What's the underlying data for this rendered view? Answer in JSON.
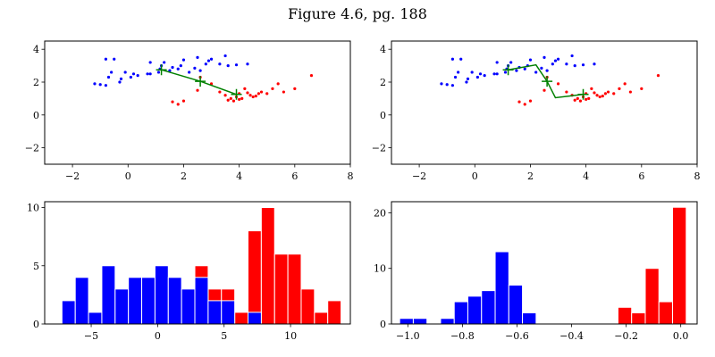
{
  "figure": {
    "title": "Figure 4.6, pg. 188"
  },
  "colors": {
    "class_a": "#0000ff",
    "class_b": "#ff0000",
    "path": "#008000"
  },
  "chart_data": [
    {
      "type": "scatter",
      "xlim": [
        -3,
        8
      ],
      "ylim": [
        -3,
        4.5
      ],
      "xticks": [
        "−2",
        "0",
        "2",
        "4",
        "6",
        "8"
      ],
      "xtick_values": [
        -2,
        0,
        2,
        4,
        6,
        8
      ],
      "yticks": [
        "−2",
        "0",
        "2",
        "4"
      ],
      "ytick_values": [
        -2,
        0,
        2,
        4
      ],
      "series": [
        {
          "color": "#0000ff",
          "points": [
            [
              -1.2,
              1.9
            ],
            [
              -1.0,
              1.85
            ],
            [
              -0.8,
              1.8
            ],
            [
              -0.8,
              3.4
            ],
            [
              -0.7,
              2.3
            ],
            [
              -0.6,
              2.6
            ],
            [
              -0.5,
              3.4
            ],
            [
              -0.3,
              2.0
            ],
            [
              -0.25,
              2.2
            ],
            [
              -0.1,
              2.6
            ],
            [
              0.1,
              2.3
            ],
            [
              0.2,
              2.5
            ],
            [
              0.35,
              2.4
            ],
            [
              0.7,
              2.5
            ],
            [
              0.8,
              2.5
            ],
            [
              0.8,
              3.2
            ],
            [
              1.1,
              2.6
            ],
            [
              1.15,
              2.8
            ],
            [
              1.2,
              3.0
            ],
            [
              1.3,
              3.2
            ],
            [
              1.5,
              2.7
            ],
            [
              1.6,
              2.9
            ],
            [
              1.8,
              2.8
            ],
            [
              1.9,
              3.0
            ],
            [
              2.0,
              3.35
            ],
            [
              2.2,
              2.6
            ],
            [
              2.4,
              2.85
            ],
            [
              2.5,
              3.5
            ],
            [
              2.6,
              2.7
            ],
            [
              2.8,
              3.1
            ],
            [
              2.9,
              3.3
            ],
            [
              3.0,
              3.4
            ],
            [
              3.3,
              3.1
            ],
            [
              3.5,
              3.6
            ],
            [
              3.6,
              3.0
            ],
            [
              3.9,
              3.05
            ],
            [
              4.3,
              3.1
            ]
          ]
        },
        {
          "color": "#ff0000",
          "points": [
            [
              1.6,
              0.8
            ],
            [
              1.8,
              0.65
            ],
            [
              2.0,
              0.85
            ],
            [
              2.5,
              1.5
            ],
            [
              2.6,
              2.3
            ],
            [
              3.0,
              1.9
            ],
            [
              3.3,
              1.4
            ],
            [
              3.5,
              1.2
            ],
            [
              3.6,
              0.9
            ],
            [
              3.7,
              1.0
            ],
            [
              3.8,
              0.85
            ],
            [
              3.9,
              1.1
            ],
            [
              4.0,
              1.3
            ],
            [
              4.0,
              0.95
            ],
            [
              4.1,
              1.0
            ],
            [
              4.2,
              1.6
            ],
            [
              4.3,
              1.35
            ],
            [
              4.4,
              1.2
            ],
            [
              4.5,
              1.1
            ],
            [
              4.6,
              1.15
            ],
            [
              4.7,
              1.3
            ],
            [
              4.8,
              1.4
            ],
            [
              5.0,
              1.3
            ],
            [
              5.2,
              1.6
            ],
            [
              5.4,
              1.9
            ],
            [
              5.6,
              1.4
            ],
            [
              6.0,
              1.6
            ],
            [
              6.6,
              2.4
            ]
          ]
        }
      ],
      "path": {
        "points": [
          [
            1.2,
            2.75
          ],
          [
            2.6,
            2.05
          ],
          [
            3.9,
            1.25
          ]
        ],
        "markers": [
          [
            1.2,
            2.75
          ],
          [
            2.6,
            2.05
          ],
          [
            3.9,
            1.25
          ]
        ]
      }
    },
    {
      "type": "scatter",
      "xlim": [
        -3,
        8
      ],
      "ylim": [
        -3,
        4.5
      ],
      "xticks": [
        "−2",
        "0",
        "2",
        "4",
        "6",
        "8"
      ],
      "xtick_values": [
        -2,
        0,
        2,
        4,
        6,
        8
      ],
      "yticks": [
        "−2",
        "0",
        "2",
        "4"
      ],
      "ytick_values": [
        -2,
        0,
        2,
        4
      ],
      "series": [
        {
          "color": "#0000ff",
          "points": [
            [
              -1.2,
              1.9
            ],
            [
              -1.0,
              1.85
            ],
            [
              -0.8,
              1.8
            ],
            [
              -0.8,
              3.4
            ],
            [
              -0.7,
              2.3
            ],
            [
              -0.6,
              2.6
            ],
            [
              -0.5,
              3.4
            ],
            [
              -0.3,
              2.0
            ],
            [
              -0.25,
              2.2
            ],
            [
              -0.1,
              2.6
            ],
            [
              0.1,
              2.3
            ],
            [
              0.2,
              2.5
            ],
            [
              0.35,
              2.4
            ],
            [
              0.7,
              2.5
            ],
            [
              0.8,
              2.5
            ],
            [
              0.8,
              3.2
            ],
            [
              1.1,
              2.6
            ],
            [
              1.15,
              2.8
            ],
            [
              1.2,
              3.0
            ],
            [
              1.3,
              3.2
            ],
            [
              1.5,
              2.7
            ],
            [
              1.6,
              2.9
            ],
            [
              1.8,
              2.8
            ],
            [
              1.9,
              3.0
            ],
            [
              2.0,
              3.35
            ],
            [
              2.2,
              2.6
            ],
            [
              2.4,
              2.85
            ],
            [
              2.5,
              3.5
            ],
            [
              2.6,
              2.7
            ],
            [
              2.8,
              3.1
            ],
            [
              2.9,
              3.3
            ],
            [
              3.0,
              3.4
            ],
            [
              3.3,
              3.1
            ],
            [
              3.5,
              3.6
            ],
            [
              3.6,
              3.0
            ],
            [
              3.9,
              3.05
            ],
            [
              4.3,
              3.1
            ]
          ]
        },
        {
          "color": "#ff0000",
          "points": [
            [
              1.6,
              0.8
            ],
            [
              1.8,
              0.65
            ],
            [
              2.0,
              0.85
            ],
            [
              2.5,
              1.5
            ],
            [
              2.6,
              2.3
            ],
            [
              3.0,
              1.9
            ],
            [
              3.3,
              1.4
            ],
            [
              3.5,
              1.2
            ],
            [
              3.6,
              0.9
            ],
            [
              3.7,
              1.0
            ],
            [
              3.8,
              0.85
            ],
            [
              3.9,
              1.1
            ],
            [
              4.0,
              1.3
            ],
            [
              4.0,
              0.95
            ],
            [
              4.1,
              1.0
            ],
            [
              4.2,
              1.6
            ],
            [
              4.3,
              1.35
            ],
            [
              4.4,
              1.2
            ],
            [
              4.5,
              1.1
            ],
            [
              4.6,
              1.15
            ],
            [
              4.7,
              1.3
            ],
            [
              4.8,
              1.4
            ],
            [
              5.0,
              1.3
            ],
            [
              5.2,
              1.6
            ],
            [
              5.4,
              1.9
            ],
            [
              5.6,
              1.4
            ],
            [
              6.0,
              1.6
            ],
            [
              6.6,
              2.4
            ]
          ]
        }
      ],
      "path": {
        "points": [
          [
            1.2,
            2.75
          ],
          [
            2.2,
            3.05
          ],
          [
            2.6,
            2.05
          ],
          [
            2.9,
            1.05
          ],
          [
            3.9,
            1.25
          ]
        ],
        "markers": [
          [
            1.2,
            2.75
          ],
          [
            2.6,
            2.05
          ],
          [
            3.9,
            1.25
          ]
        ]
      }
    },
    {
      "type": "bar",
      "xlim": [
        -8.5,
        14.5
      ],
      "ylim": [
        0,
        10.5
      ],
      "xticks": [
        "−5",
        "0",
        "5",
        "10"
      ],
      "xtick_values": [
        -5,
        0,
        5,
        10
      ],
      "yticks": [
        "0",
        "5",
        "10"
      ],
      "ytick_values": [
        0,
        5,
        10
      ],
      "bin_edges": [
        -7.2,
        -6.2,
        -5.2,
        -4.2,
        -3.2,
        -2.2,
        -1.2,
        -0.2,
        0.8,
        1.8,
        2.8,
        3.8,
        4.8,
        5.8,
        6.8,
        7.8,
        8.8,
        9.8,
        10.8,
        11.8,
        12.8,
        13.8
      ],
      "series": [
        {
          "color": "#ff0000",
          "values": [
            0,
            0,
            0,
            0,
            0,
            0,
            0,
            0,
            0,
            0,
            5,
            3,
            3,
            1,
            8,
            10,
            6,
            6,
            3,
            1,
            2
          ]
        },
        {
          "color": "#0000ff",
          "values": [
            2,
            4,
            1,
            5,
            3,
            4,
            4,
            5,
            4,
            3,
            4,
            2,
            2,
            0,
            1,
            0,
            0,
            0,
            0,
            0,
            0
          ]
        }
      ]
    },
    {
      "type": "bar",
      "xlim": [
        -1.06,
        0.06
      ],
      "ylim": [
        0,
        22
      ],
      "xticks": [
        "−1.0",
        "−0.8",
        "−0.6",
        "−0.4",
        "−0.2",
        "0.0"
      ],
      "xtick_values": [
        -1.0,
        -0.8,
        -0.6,
        -0.4,
        -0.2,
        0.0
      ],
      "yticks": [
        "0",
        "10",
        "20"
      ],
      "ytick_values": [
        0,
        10,
        20
      ],
      "bin_edges": [
        -1.03,
        -0.98,
        -0.93,
        -0.88,
        -0.83,
        -0.78,
        -0.73,
        -0.68,
        -0.63,
        -0.58,
        -0.53,
        -0.48,
        -0.43,
        -0.38,
        -0.33,
        -0.28,
        -0.23,
        -0.18,
        -0.13,
        -0.08,
        -0.03,
        0.02
      ],
      "series": [
        {
          "color": "#0000ff",
          "values": [
            1,
            1,
            0,
            1,
            4,
            5,
            6,
            13,
            7,
            2,
            0,
            0,
            0,
            0,
            0,
            0,
            0,
            0,
            0,
            0,
            0
          ]
        },
        {
          "color": "#ff0000",
          "values": [
            0,
            0,
            0,
            0,
            0,
            0,
            0,
            0,
            0,
            0,
            0,
            0,
            0,
            0,
            0,
            0,
            3,
            2,
            10,
            4,
            21
          ]
        }
      ]
    }
  ]
}
